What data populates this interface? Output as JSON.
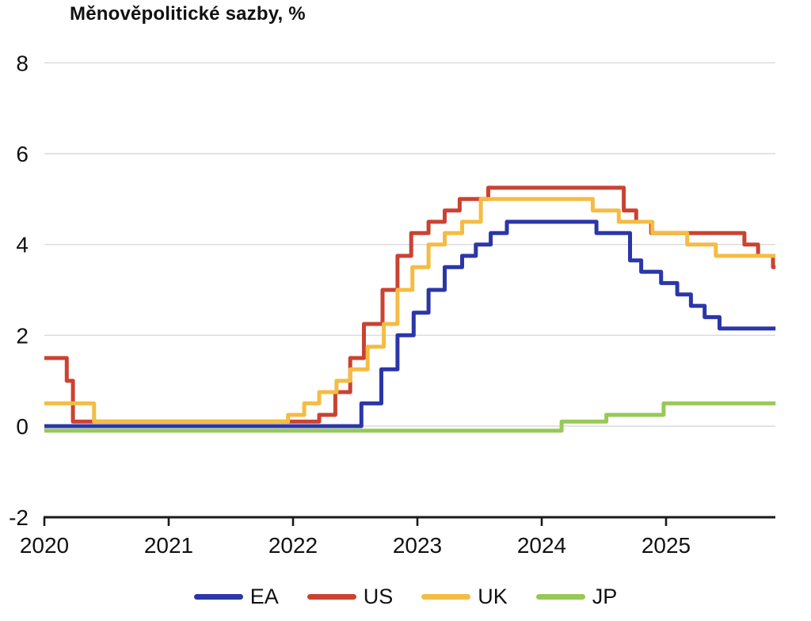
{
  "title": "Měnověpolitické sazby, %",
  "chart_data": {
    "type": "line",
    "subtype": "step",
    "title": "Měnověpolitické sazby, %",
    "xlabel": "",
    "ylabel": "%",
    "x_axis": {
      "range": [
        2020,
        2025.88
      ],
      "ticks": [
        2020,
        2021,
        2022,
        2023,
        2024,
        2025
      ]
    },
    "y_axis": {
      "range": [
        -2,
        8
      ],
      "ticks": [
        8,
        6,
        4,
        2,
        0,
        -2
      ],
      "gridlines": [
        8,
        6,
        4,
        2,
        0
      ]
    },
    "grid": "horizontal",
    "legend_position": "bottom-center",
    "end_time": 2025.88,
    "series": [
      {
        "name": "EA",
        "color": "#2b36a8",
        "points": [
          [
            2020.0,
            0.0
          ],
          [
            2022.55,
            0.5
          ],
          [
            2022.71,
            1.25
          ],
          [
            2022.84,
            2.0
          ],
          [
            2022.97,
            2.5
          ],
          [
            2023.09,
            3.0
          ],
          [
            2023.22,
            3.5
          ],
          [
            2023.36,
            3.75
          ],
          [
            2023.47,
            4.0
          ],
          [
            2023.59,
            4.25
          ],
          [
            2023.72,
            4.5
          ],
          [
            2024.44,
            4.25
          ],
          [
            2024.71,
            3.65
          ],
          [
            2024.8,
            3.4
          ],
          [
            2024.96,
            3.15
          ],
          [
            2025.09,
            2.9
          ],
          [
            2025.2,
            2.65
          ],
          [
            2025.31,
            2.4
          ],
          [
            2025.43,
            2.15
          ]
        ]
      },
      {
        "name": "US",
        "color": "#cb4232",
        "points": [
          [
            2020.0,
            1.5
          ],
          [
            2020.18,
            1.0
          ],
          [
            2020.23,
            0.1
          ],
          [
            2022.21,
            0.25
          ],
          [
            2022.34,
            0.75
          ],
          [
            2022.46,
            1.5
          ],
          [
            2022.57,
            2.25
          ],
          [
            2022.72,
            3.0
          ],
          [
            2022.84,
            3.75
          ],
          [
            2022.95,
            4.25
          ],
          [
            2023.09,
            4.5
          ],
          [
            2023.22,
            4.75
          ],
          [
            2023.34,
            5.0
          ],
          [
            2023.57,
            5.25
          ],
          [
            2024.66,
            4.75
          ],
          [
            2024.76,
            4.5
          ],
          [
            2024.88,
            4.25
          ],
          [
            2025.63,
            4.0
          ],
          [
            2025.74,
            3.75
          ],
          [
            2025.86,
            3.5
          ]
        ]
      },
      {
        "name": "UK",
        "color": "#f4bc43",
        "points": [
          [
            2020.0,
            0.5
          ],
          [
            2020.4,
            0.1
          ],
          [
            2021.96,
            0.25
          ],
          [
            2022.09,
            0.5
          ],
          [
            2022.21,
            0.75
          ],
          [
            2022.35,
            1.0
          ],
          [
            2022.46,
            1.25
          ],
          [
            2022.6,
            1.75
          ],
          [
            2022.73,
            2.25
          ],
          [
            2022.84,
            3.0
          ],
          [
            2022.96,
            3.5
          ],
          [
            2023.09,
            4.0
          ],
          [
            2023.22,
            4.25
          ],
          [
            2023.36,
            4.5
          ],
          [
            2023.51,
            5.0
          ],
          [
            2024.41,
            4.75
          ],
          [
            2024.62,
            4.5
          ],
          [
            2024.89,
            4.25
          ],
          [
            2025.17,
            4.0
          ],
          [
            2025.4,
            3.75
          ]
        ]
      },
      {
        "name": "JP",
        "color": "#97c957",
        "points": [
          [
            2020.0,
            -0.1
          ],
          [
            2024.16,
            0.1
          ],
          [
            2024.52,
            0.25
          ],
          [
            2024.98,
            0.5
          ]
        ]
      }
    ],
    "style": {
      "gridline_color": "#dadada",
      "axis_color": "#1a1a1a",
      "line_width": 5
    }
  }
}
